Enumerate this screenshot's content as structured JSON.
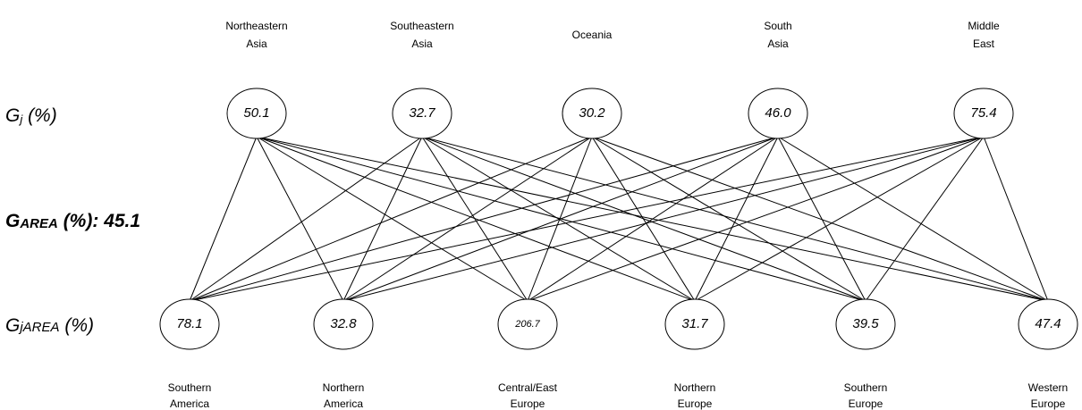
{
  "row_labels": [
    {
      "base": "G",
      "sub": "j",
      "suffix": " (%)"
    },
    {
      "base": "G",
      "sub": "AREA",
      "suffix": " (%): ",
      "value": "45.1"
    },
    {
      "base": "G",
      "sub": "jAREA",
      "suffix": " (%)"
    }
  ],
  "top_nodes": [
    {
      "label": [
        "Northeastern",
        "Asia"
      ],
      "value": "50.1"
    },
    {
      "label": [
        "Southeastern",
        "Asia"
      ],
      "value": "32.7"
    },
    {
      "label": [
        "Oceania"
      ],
      "value": "30.2"
    },
    {
      "label": [
        "South",
        "Asia"
      ],
      "value": "46.0"
    },
    {
      "label": [
        "Middle",
        "East"
      ],
      "value": "75.4"
    }
  ],
  "bottom_nodes": [
    {
      "label": [
        "Southern",
        "America"
      ],
      "value": "78.1"
    },
    {
      "label": [
        "Northern",
        "America"
      ],
      "value": "32.8"
    },
    {
      "label": [
        "Central/East",
        "Europe"
      ],
      "value": "206.7"
    },
    {
      "label": [
        "Northern",
        "Europe"
      ],
      "value": "31.7"
    },
    {
      "label": [
        "Southern",
        "Europe"
      ],
      "value": "39.5"
    },
    {
      "label": [
        "Western",
        "Europe"
      ],
      "value": "47.4"
    }
  ]
}
